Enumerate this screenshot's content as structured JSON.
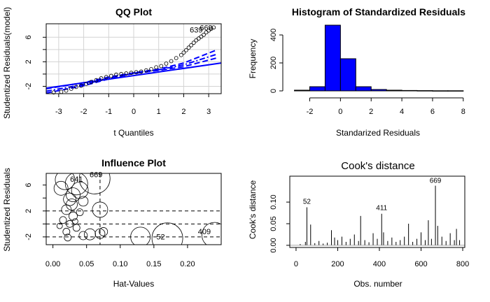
{
  "charts": {
    "qq": {
      "title": "QQ Plot",
      "xlabel": "t Quantiles",
      "ylabel": "Studentized Residuals(model)",
      "xticks": [
        "-3",
        "-2",
        "-1",
        "0",
        "1",
        "2",
        "3"
      ],
      "yticks": [
        "-2",
        "2",
        "6"
      ],
      "point_labels": [
        {
          "text": "639",
          "x": 2.5,
          "y": 6.8
        },
        {
          "text": "669",
          "x": 2.9,
          "y": 7.1
        }
      ]
    },
    "hist": {
      "title": "Histogram of Standardized Residuals",
      "xlabel": "Standarized Residuals",
      "ylabel": "Frequency",
      "xticks": [
        "-2",
        "0",
        "2",
        "4",
        "6",
        "8"
      ],
      "yticks": [
        "0",
        "200",
        "400"
      ],
      "bar_color": "#0000ff"
    },
    "influence": {
      "title": "Influence Plot",
      "xlabel": "Hat-Values",
      "ylabel": "Studentized Residuals",
      "xticks": [
        "0.00",
        "0.05",
        "0.10",
        "0.15",
        "0.20"
      ],
      "yticks": [
        "-2",
        "2",
        "6"
      ],
      "point_labels": [
        {
          "text": "669",
          "x": 0.064,
          "y": 7.2
        },
        {
          "text": "641",
          "x": 0.035,
          "y": 6.5
        },
        {
          "text": "409",
          "x": 0.225,
          "y": -1.6
        },
        {
          "text": "52",
          "x": 0.16,
          "y": -2.4
        }
      ]
    },
    "cooks": {
      "title": "Cook's distance",
      "xlabel": "Obs. number",
      "ylabel": "Cook's distance",
      "xticks": [
        "0",
        "200",
        "400",
        "600",
        "800"
      ],
      "yticks": [
        "0.00",
        "0.05",
        "0.10"
      ],
      "point_labels": [
        {
          "text": "52",
          "x": 52,
          "y": 0.09
        },
        {
          "text": "411",
          "x": 411,
          "y": 0.075
        },
        {
          "text": "669",
          "x": 669,
          "y": 0.138
        }
      ]
    }
  },
  "chart_data": [
    {
      "type": "scatter",
      "title": "QQ Plot",
      "xlabel": "t Quantiles",
      "ylabel": "Studentized Residuals(model)",
      "xlim": [
        -3.5,
        3.5
      ],
      "ylim": [
        -3.2,
        8.2
      ],
      "series": [
        {
          "x": [
            -3.2,
            -2.9,
            -2.7,
            -2.5,
            -2.3,
            -2.1,
            -1.9,
            -1.7,
            -1.5,
            -1.3,
            -1.1,
            -0.9,
            -0.7,
            -0.5,
            -0.3,
            -0.1,
            0.1,
            0.3,
            0.5,
            0.7,
            0.9,
            1.1,
            1.3,
            1.5,
            1.7,
            1.9,
            2.0,
            2.1,
            2.2,
            2.3,
            2.4,
            2.5,
            2.6,
            2.7,
            2.8,
            2.9,
            3.0,
            3.1,
            3.2
          ],
          "y": [
            -3.0,
            -2.9,
            -2.7,
            -2.4,
            -2.1,
            -1.9,
            -1.6,
            -1.3,
            -1.0,
            -0.7,
            -0.5,
            -0.3,
            -0.1,
            0.0,
            0.1,
            0.2,
            0.3,
            0.4,
            0.6,
            0.8,
            1.1,
            1.3,
            1.7,
            2.1,
            2.6,
            3.1,
            3.5,
            3.9,
            4.3,
            4.7,
            5.1,
            5.5,
            5.8,
            6.1,
            6.4,
            6.8,
            7.1,
            7.4,
            7.6
          ]
        }
      ],
      "reference_line": {
        "x": [
          -3.5,
          3.5
        ],
        "y": [
          -2.3,
          1.8
        ]
      },
      "envelope_upper": {
        "x": [
          -3.5,
          -2,
          -1,
          0,
          1,
          2,
          3.3
        ],
        "y": [
          -2.4,
          -1.4,
          -0.5,
          0.2,
          0.8,
          1.8,
          3.9
        ]
      },
      "envelope_lower": {
        "x": [
          -3.5,
          -2,
          -1,
          0,
          1,
          2,
          3.3
        ],
        "y": [
          -3.1,
          -1.9,
          -0.8,
          0.1,
          0.6,
          1.2,
          2.6
        ]
      },
      "envelope_mid": {
        "x": [
          -3.5,
          -2,
          -1,
          0,
          1,
          2,
          3.3
        ],
        "y": [
          -2.8,
          -1.7,
          -0.7,
          0.15,
          0.7,
          1.5,
          3.2
        ]
      }
    },
    {
      "type": "bar",
      "title": "Histogram of Standardized Residuals",
      "xlabel": "Standarized Residuals",
      "ylabel": "Frequency",
      "bins": [
        [
          -3,
          -2
        ],
        [
          -2,
          -1
        ],
        [
          -1,
          0
        ],
        [
          0,
          1
        ],
        [
          1,
          2
        ],
        [
          2,
          3
        ],
        [
          3,
          4
        ],
        [
          4,
          5
        ],
        [
          5,
          6
        ],
        [
          6,
          7
        ],
        [
          7,
          8
        ]
      ],
      "values": [
        5,
        30,
        470,
        230,
        30,
        10,
        5,
        3,
        2,
        1,
        1
      ],
      "xlim": [
        -3.3,
        8.1
      ],
      "ylim": [
        0,
        500
      ]
    },
    {
      "type": "scatter",
      "title": "Influence Plot",
      "xlabel": "Hat-Values",
      "ylabel": "Studentized Residuals",
      "xlim": [
        -0.01,
        0.25
      ],
      "ylim": [
        -3.2,
        7.8
      ],
      "hlines": [
        -2,
        0,
        2
      ],
      "vlines": [
        0.07
      ],
      "points": [
        {
          "x": 0.062,
          "y": 7.0,
          "r": 22
        },
        {
          "x": 0.035,
          "y": 6.2,
          "r": 16
        },
        {
          "x": 0.04,
          "y": 5.2,
          "r": 12
        },
        {
          "x": 0.03,
          "y": 4.5,
          "r": 10
        },
        {
          "x": 0.025,
          "y": 3.8,
          "r": 9
        },
        {
          "x": 0.028,
          "y": 3.0,
          "r": 8
        },
        {
          "x": 0.02,
          "y": 2.2,
          "r": 7
        },
        {
          "x": 0.03,
          "y": 1.2,
          "r": 6
        },
        {
          "x": 0.015,
          "y": 0.6,
          "r": 5
        },
        {
          "x": 0.025,
          "y": 0.0,
          "r": 5
        },
        {
          "x": 0.035,
          "y": -0.6,
          "r": 5
        },
        {
          "x": 0.02,
          "y": -1.2,
          "r": 5
        },
        {
          "x": 0.045,
          "y": -1.8,
          "r": 6
        },
        {
          "x": 0.07,
          "y": 2.2,
          "r": 11
        },
        {
          "x": 0.07,
          "y": -1.5,
          "r": 7
        },
        {
          "x": 0.13,
          "y": -2.0,
          "r": 14
        },
        {
          "x": 0.17,
          "y": -2.2,
          "r": 22
        },
        {
          "x": 0.24,
          "y": -1.7,
          "r": 18
        },
        {
          "x": 0.055,
          "y": -1.6,
          "r": 8
        },
        {
          "x": 0.075,
          "y": -1.2,
          "r": 6
        },
        {
          "x": 0.018,
          "y": 6.8,
          "r": 14
        },
        {
          "x": 0.012,
          "y": 5.5,
          "r": 10
        },
        {
          "x": 0.045,
          "y": 3.5,
          "r": 7
        },
        {
          "x": 0.04,
          "y": 1.8,
          "r": 5
        },
        {
          "x": 0.01,
          "y": -0.3,
          "r": 4
        },
        {
          "x": 0.033,
          "y": 0.4,
          "r": 4
        },
        {
          "x": 0.022,
          "y": -2.1,
          "r": 5
        }
      ]
    },
    {
      "type": "bar",
      "title": "Cook's distance",
      "xlabel": "Obs. number",
      "ylabel": "Cook's distance",
      "xlim": [
        -30,
        810
      ],
      "ylim": [
        -0.005,
        0.16
      ],
      "spikes": [
        [
          20,
          0.003
        ],
        [
          45,
          0.008
        ],
        [
          52,
          0.088
        ],
        [
          70,
          0.048
        ],
        [
          90,
          0.005
        ],
        [
          110,
          0.01
        ],
        [
          130,
          0.004
        ],
        [
          150,
          0.006
        ],
        [
          170,
          0.035
        ],
        [
          185,
          0.018
        ],
        [
          200,
          0.012
        ],
        [
          220,
          0.02
        ],
        [
          240,
          0.008
        ],
        [
          260,
          0.015
        ],
        [
          280,
          0.025
        ],
        [
          300,
          0.01
        ],
        [
          310,
          0.068
        ],
        [
          330,
          0.012
        ],
        [
          350,
          0.007
        ],
        [
          370,
          0.028
        ],
        [
          390,
          0.015
        ],
        [
          411,
          0.073
        ],
        [
          420,
          0.03
        ],
        [
          440,
          0.01
        ],
        [
          460,
          0.018
        ],
        [
          480,
          0.008
        ],
        [
          500,
          0.012
        ],
        [
          520,
          0.02
        ],
        [
          540,
          0.05
        ],
        [
          560,
          0.008
        ],
        [
          580,
          0.015
        ],
        [
          600,
          0.03
        ],
        [
          620,
          0.012
        ],
        [
          635,
          0.058
        ],
        [
          650,
          0.015
        ],
        [
          669,
          0.138
        ],
        [
          680,
          0.045
        ],
        [
          700,
          0.02
        ],
        [
          720,
          0.01
        ],
        [
          740,
          0.028
        ],
        [
          760,
          0.012
        ],
        [
          770,
          0.038
        ],
        [
          785,
          0.012
        ]
      ]
    }
  ]
}
